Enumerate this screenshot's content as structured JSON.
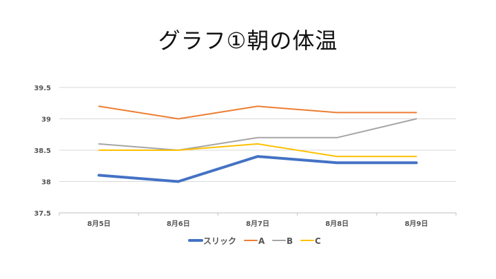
{
  "chart_data": {
    "type": "line",
    "title": "グラフ①朝の体温",
    "categories": [
      "8月5日",
      "8月6日",
      "8月7日",
      "8月8日",
      "8月9日"
    ],
    "ylim": [
      37.5,
      39.5
    ],
    "yticks": [
      37.5,
      38,
      38.5,
      39,
      39.5
    ],
    "ytick_labels": [
      "37.5",
      "38",
      "38.5",
      "39",
      "39.5"
    ],
    "grid": true,
    "legend_position": "bottom",
    "series": [
      {
        "name": "スリック",
        "values": [
          38.1,
          38.0,
          38.4,
          38.3,
          38.3
        ],
        "color": "#4472C4",
        "bold": true
      },
      {
        "name": "A",
        "values": [
          39.2,
          39.0,
          39.2,
          39.1,
          39.1
        ],
        "color": "#ED7D31"
      },
      {
        "name": "B",
        "values": [
          38.6,
          38.5,
          38.7,
          38.7,
          39.0
        ],
        "color": "#A5A5A5"
      },
      {
        "name": "C",
        "values": [
          38.5,
          38.5,
          38.6,
          38.4,
          38.4
        ],
        "color": "#FFC000"
      }
    ]
  }
}
